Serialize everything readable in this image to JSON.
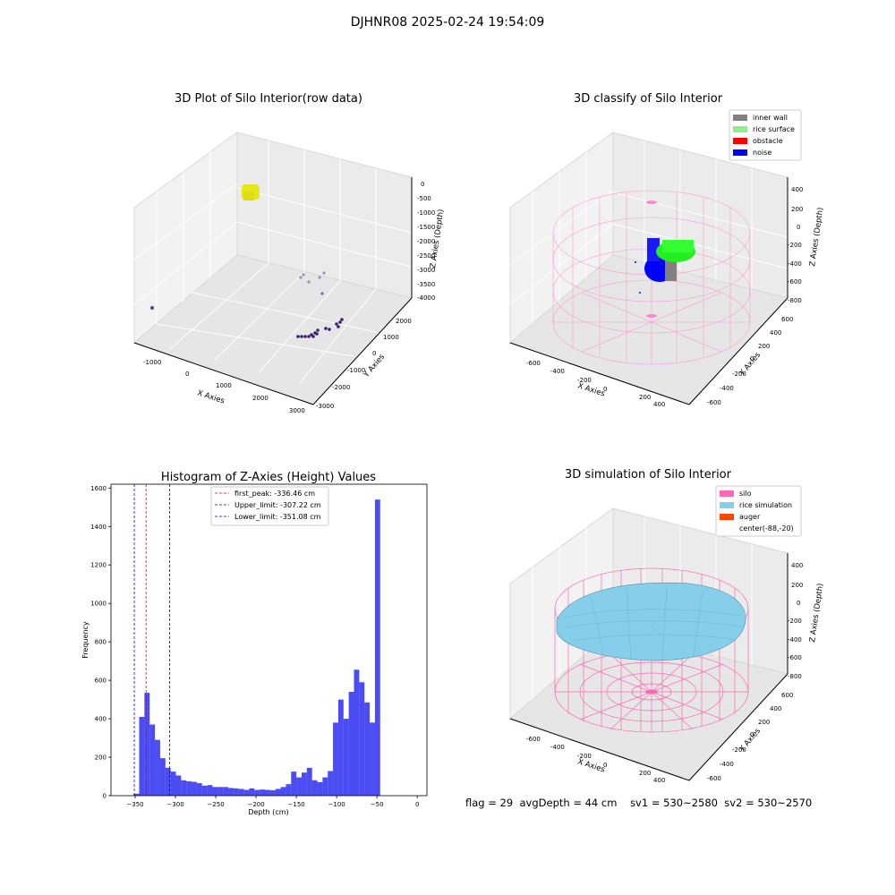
{
  "suptitle": "DJHNR08 2025-02-24 19:54:09",
  "panels": {
    "raw": {
      "title": "3D Plot of Silo Interior(row data)",
      "xlabel": "X Axies",
      "ylabel": "Y Axies",
      "zlabel": "Z Axies (Depth)",
      "x_ticks": [
        "-1000",
        "0",
        "1000",
        "2000",
        "3000"
      ],
      "y_ticks": [
        "2000",
        "1000",
        "0",
        "-1000",
        "-2000",
        "-3000"
      ],
      "z_ticks": [
        "0",
        "-500",
        "-1000",
        "-1500",
        "-2000",
        "-2500",
        "-3000",
        "-3500",
        "-4000"
      ]
    },
    "classify": {
      "title": "3D classify of Silo Interior",
      "xlabel": "X Axies",
      "ylabel": "Y Axies",
      "zlabel": "Z Axies (Depth)",
      "x_ticks": [
        "-600",
        "-400",
        "-200",
        "0",
        "200",
        "400"
      ],
      "y_ticks": [
        "600",
        "400",
        "200",
        "0",
        "-200",
        "-400",
        "-600"
      ],
      "z_ticks": [
        "400",
        "200",
        "0",
        "-200",
        "-400",
        "-600",
        "-800"
      ],
      "legend": [
        {
          "label": "inner wall",
          "color": "#808080"
        },
        {
          "label": "rice surface",
          "color": "#90ee90"
        },
        {
          "label": "obstacle",
          "color": "#ff0000"
        },
        {
          "label": "noise",
          "color": "#0000ff"
        }
      ]
    },
    "simulation": {
      "title": "3D simulation of Silo Interior",
      "xlabel": "X Axies",
      "ylabel": "Y Axies",
      "zlabel": "Z Axies (Depth)",
      "x_ticks": [
        "-600",
        "-400",
        "-200",
        "0",
        "200",
        "400"
      ],
      "y_ticks": [
        "600",
        "400",
        "200",
        "0",
        "-200",
        "-400",
        "-600"
      ],
      "z_ticks": [
        "400",
        "200",
        "0",
        "-200",
        "-400",
        "-600",
        "-800"
      ],
      "legend": [
        {
          "label": "silo",
          "color": "#ff69b4"
        },
        {
          "label": "rice simulation",
          "color": "#87ceeb"
        },
        {
          "label": "auger",
          "color": "#ff4500"
        },
        {
          "label": "center(-88,-20)",
          "color": ""
        }
      ]
    }
  },
  "chart_data": {
    "type": "bar",
    "title": "Histogram of Z-Axies (Height) Values",
    "xlabel": "Depth (cm)",
    "ylabel": "Frequency",
    "xlim": [
      -380,
      12
    ],
    "ylim": [
      0,
      1620
    ],
    "x_ticks": [
      -350,
      -300,
      -250,
      -200,
      -150,
      -100,
      -50,
      0
    ],
    "y_ticks": [
      0,
      200,
      400,
      600,
      800,
      1000,
      1200,
      1400,
      1600
    ],
    "bar_color": "#0000ee",
    "bin_edges": [
      -352,
      -345,
      -338.5,
      -332,
      -325.5,
      -319,
      -312.5,
      -306,
      -299.5,
      -293,
      -286.5,
      -280,
      -273.5,
      -267,
      -260.5,
      -254,
      -247.5,
      -241,
      -234.5,
      -228,
      -221.5,
      -215,
      -208.5,
      -202,
      -195.5,
      -189,
      -182.5,
      -176,
      -169.5,
      -163,
      -156.5,
      -150,
      -143.5,
      -137,
      -130.5,
      -124,
      -117.5,
      -111,
      -104.5,
      -98,
      -91.5,
      -85,
      -78.5,
      -72,
      -65.5,
      -59,
      -52.5,
      -46,
      -39.5,
      -33,
      -26.5,
      -20,
      -13.5,
      -7,
      0
    ],
    "values": [
      10,
      410,
      535,
      370,
      290,
      195,
      145,
      125,
      105,
      80,
      75,
      72,
      65,
      52,
      55,
      45,
      45,
      45,
      40,
      38,
      35,
      30,
      38,
      30,
      32,
      30,
      28,
      35,
      45,
      60,
      125,
      95,
      120,
      145,
      80,
      70,
      95,
      128,
      380,
      500,
      400,
      540,
      655,
      590,
      485,
      380,
      1540,
      0,
      0,
      0,
      0,
      0,
      0,
      0
    ],
    "lines": [
      {
        "label": "first_peak: -336.46 cm",
        "x": -336.46,
        "color": "#ff0000"
      },
      {
        "label": "Upper_limit: -307.22 cm",
        "x": -307.22,
        "color": "#0000ff"
      },
      {
        "label": "Lower_limit: -351.08 cm",
        "x": -351.08,
        "color": "#0000ff"
      }
    ]
  },
  "stats": {
    "flag": "flag = 29",
    "avg_depth": "avgDepth = 44 cm",
    "sv1": "sv1 = 530~2580",
    "sv2": "sv2 = 530~2570"
  }
}
